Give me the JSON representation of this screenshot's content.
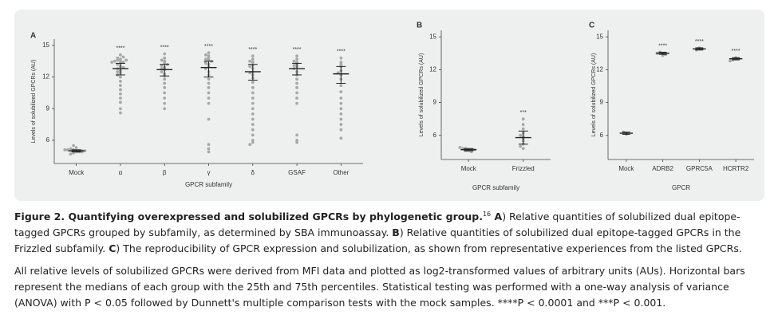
{
  "chart_data": [
    {
      "type": "swarm",
      "panel": "A",
      "ylabel": "Levels of solubilized GPCRs (AU)",
      "xlabel": "GPCR subfamily",
      "categories": [
        "Mock",
        "α",
        "β",
        "γ",
        "δ",
        "GSAF",
        "Other"
      ],
      "medians": [
        5.0,
        12.8,
        12.7,
        12.9,
        12.5,
        12.8,
        12.3
      ],
      "q1": [
        4.9,
        12.2,
        12.1,
        12.0,
        11.7,
        12.2,
        11.4
      ],
      "q3": [
        5.1,
        13.3,
        13.2,
        13.5,
        13.2,
        13.3,
        13.0
      ],
      "significance": [
        null,
        "****",
        "****",
        "****",
        "****",
        "****",
        "****"
      ],
      "points": [
        [
          5.0,
          4.9,
          5.1,
          5.0,
          4.8,
          5.2,
          5.0,
          4.9,
          5.1,
          5.3,
          4.7,
          5.0,
          5.5,
          4.9,
          5.1
        ],
        [
          13.5,
          13.6,
          13.4,
          13.7,
          13.8,
          13.5,
          13.3,
          13.2,
          13.0,
          12.8,
          12.6,
          12.4,
          12.2,
          12.0,
          11.6,
          11.2,
          10.8,
          10.4,
          10.0,
          9.6,
          9.0,
          8.6,
          13.9,
          14.1,
          13.6,
          13.4,
          12.9,
          12.5
        ],
        [
          13.8,
          13.5,
          13.3,
          13.1,
          12.9,
          12.7,
          12.5,
          12.3,
          12.1,
          11.8,
          11.4,
          11.0,
          10.5,
          10.0,
          9.5,
          9.0,
          13.6,
          13.2,
          12.8,
          14.2
        ],
        [
          14.3,
          14.0,
          13.8,
          13.6,
          13.4,
          13.2,
          13.0,
          12.8,
          12.5,
          12.2,
          11.8,
          11.4,
          11.0,
          10.5,
          10.0,
          9.5,
          8.0,
          5.6,
          5.2,
          4.9,
          13.7,
          13.5,
          13.3,
          14.1
        ],
        [
          14.0,
          13.7,
          13.4,
          13.1,
          12.8,
          12.5,
          12.2,
          11.9,
          11.5,
          11.0,
          10.5,
          10.0,
          9.5,
          9.0,
          8.5,
          8.0,
          7.5,
          7.0,
          6.5,
          6.0,
          5.8,
          5.6,
          13.5,
          13.0,
          12.4
        ],
        [
          14.0,
          13.7,
          13.4,
          13.2,
          13.0,
          12.8,
          12.5,
          12.2,
          11.8,
          11.4,
          11.0,
          10.5,
          10.0,
          9.5,
          6.5,
          6.0,
          5.8,
          13.5,
          13.1
        ],
        [
          13.8,
          13.4,
          13.0,
          12.6,
          12.2,
          11.8,
          11.2,
          10.6,
          10.0,
          9.5,
          9.0,
          8.5,
          8.0,
          7.5,
          7.0,
          6.2,
          13.2,
          12.4
        ]
      ],
      "ylim": [
        3.8,
        15.6
      ],
      "yticks": [
        6,
        9,
        12,
        15
      ],
      "color": "#a8a8a8"
    },
    {
      "type": "swarm",
      "panel": "B",
      "ylabel": "Levels of solubilized GPCRs (AU)",
      "xlabel": "GPCR subfamily",
      "categories": [
        "Mock",
        "Frizzled"
      ],
      "medians": [
        4.7,
        5.8
      ],
      "q1": [
        4.6,
        5.2
      ],
      "q3": [
        4.8,
        6.4
      ],
      "significance": [
        null,
        "***"
      ],
      "points": [
        [
          4.7,
          4.6,
          4.8,
          4.7,
          4.6,
          4.8,
          4.7,
          4.9,
          4.5
        ],
        [
          7.5,
          7.0,
          6.6,
          6.2,
          5.9,
          5.7,
          5.5,
          5.2,
          5.0,
          4.8,
          6.0
        ]
      ],
      "ylim": [
        3.8,
        15.6
      ],
      "yticks": [
        6,
        9,
        12,
        15
      ],
      "color": "#a8a8a8"
    },
    {
      "type": "swarm",
      "panel": "C",
      "ylabel": "Levels of solubilized GPCRs (AU)",
      "xlabel": "GPCR",
      "categories": [
        "Mock",
        "ADRB2",
        "GPRC5A",
        "HCRTR2"
      ],
      "medians": [
        6.2,
        13.5,
        13.9,
        13.0
      ],
      "q1": [
        6.1,
        13.4,
        13.8,
        12.9
      ],
      "q3": [
        6.3,
        13.6,
        14.0,
        13.1
      ],
      "significance": [
        null,
        "****",
        "****",
        "****"
      ],
      "points": [
        [
          6.2,
          6.3,
          6.1
        ],
        [
          13.5,
          13.6,
          13.4,
          13.5,
          13.3
        ],
        [
          13.9,
          14.0,
          13.8,
          13.9
        ],
        [
          13.0,
          13.1,
          12.9,
          13.0,
          12.8
        ]
      ],
      "ylim": [
        3.8,
        15.6
      ],
      "yticks": [
        6,
        9,
        12,
        15
      ],
      "color": "#a8a8a8"
    }
  ],
  "caption": {
    "runs": [
      {
        "text": "Figure 2. Quantifying overexpressed and solubilized GPCRs by phylogenetic group.",
        "style": "bold"
      },
      {
        "text": "16",
        "style": "sup"
      },
      {
        "text": " A",
        "style": "bold"
      },
      {
        "text": ") Relative quantities of solubilized dual epitope-tagged GPCRs grouped by subfamily, as determined by SBA immunoassay. "
      },
      {
        "text": "B",
        "style": "bold"
      },
      {
        "text": ") Relative quantities of solubilized dual epitope-tagged GPCRs in the Frizzled subfamily. "
      },
      {
        "text": "C",
        "style": "bold"
      },
      {
        "text": ") The reproducibility of GPCR expression and solubilization, as shown from representative experiences from the listed GPCRs."
      }
    ],
    "note": "All relative levels of solubilized GPCRs were derived from MFI data and plotted as log2-transformed values of arbitrary units (AUs). Horizontal bars represent the medians of each group with the 25th and 75th percentiles. Statistical testing was performed with a one-way analysis of variance (ANOVA) with P < 0.05 followed by Dunnett's multiple comparison tests with the mock samples. ****P < 0.0001 and ***P < 0.001."
  }
}
